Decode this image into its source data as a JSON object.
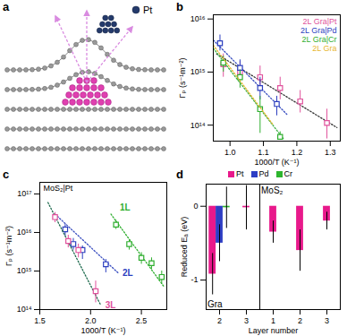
{
  "diagram": {
    "panel_label": "a",
    "legend": "Pt"
  },
  "chart_data": [
    {
      "panel_label": "b",
      "type": "scatter",
      "log": "y",
      "x_label": "1000/T (K⁻¹)",
      "y_label": "Γₚ (s⁻¹m⁻²)",
      "xlim": [
        0.95,
        1.33
      ],
      "xticks": [
        {
          "value": 1,
          "label": "1.0"
        },
        1.1,
        1.2,
        1.3
      ],
      "ylim": [
        50000000000000.0,
        1.2e+16
      ],
      "yticks": [
        {
          "value": 100000000000000.0,
          "label": "10¹⁴"
        },
        {
          "value": 1000000000000000.0,
          "label": "10¹⁵"
        },
        {
          "value": 1e+16,
          "label": "10¹⁶"
        }
      ],
      "legend": "top-right",
      "series": [
        {
          "name": "2L Gra|Pt",
          "color": "#e0529c",
          "marker": "square",
          "x": [
            0.98,
            1.03,
            1.09,
            1.15,
            1.21,
            1.29
          ],
          "values": [
            1400000000000000.0,
            1000000000000000.0,
            800000000000000.0,
            500000000000000.0,
            280000000000000.0,
            110000000000000.0
          ],
          "lower": [
            800000000000000.0,
            600000000000000.0,
            450000000000000.0,
            300000000000000.0,
            170000000000000.0,
            55000000000000.0
          ],
          "upper": [
            2200000000000000.0,
            1600000000000000.0,
            1300000000000000.0,
            800000000000000.0,
            450000000000000.0,
            200000000000000.0
          ],
          "fit": {
            "color": "#333333",
            "line_style": "dotted",
            "x": [
              0.96,
              1.32
            ],
            "values": [
              2200000000000000.0,
              90000000000000.0
            ]
          }
        },
        {
          "name": "2L Gra|Pd",
          "color": "#2c3fbf",
          "marker": "square",
          "x": [
            0.97,
            1.03,
            1.09,
            1.14
          ],
          "values": [
            3500000000000000.0,
            1200000000000000.0,
            500000000000000.0,
            250000000000000.0
          ],
          "lower": [
            2500000000000000.0,
            800000000000000.0,
            300000000000000.0,
            150000000000000.0
          ],
          "upper": [
            5000000000000000.0,
            1700000000000000.0,
            800000000000000.0,
            350000000000000.0
          ],
          "fit": {
            "color": "#3a4fc0",
            "line_style": "dotted",
            "x": [
              0.95,
              1.17
            ],
            "values": [
              4000000000000000.0,
              160000000000000.0
            ]
          }
        },
        {
          "name": "2L Gra|Cr",
          "color": "#2fae2f",
          "marker": "square",
          "x": [
            0.98,
            1.03,
            1.09,
            1.15
          ],
          "values": [
            1500000000000000.0,
            800000000000000.0,
            200000000000000.0,
            60000000000000.0
          ],
          "lower": [
            1000000000000000.0,
            500000000000000.0,
            70000000000000.0,
            52000000000000.0
          ],
          "upper": [
            2000000000000000.0,
            1100000000000000.0,
            350000000000000.0,
            75000000000000.0
          ],
          "fit": {
            "color": "#3cb043",
            "line_style": "dotted",
            "x": [
              0.95,
              1.16
            ],
            "values": [
              2800000000000000.0,
              55000000000000.0
            ]
          }
        },
        {
          "name": "2L Gra",
          "color": "#e8b730",
          "fit": {
            "color": "#e8b730",
            "line_style": "dotted",
            "x": [
              0.95,
              1.13
            ],
            "values": [
              3200000000000000.0,
              100000000000000.0
            ]
          }
        }
      ]
    },
    {
      "panel_label": "c",
      "type": "scatter",
      "log": "y",
      "title": "MoS₂|Pt",
      "x_label": "1000/T (K⁻¹)",
      "y_label": "Γₚ (s⁻¹m⁻²)",
      "xlim": [
        1.5,
        2.75
      ],
      "xticks": [
        1.5,
        {
          "value": 2,
          "label": "2.0"
        },
        2.5
      ],
      "ylim": [
        100000000000000.0,
        2e+17
      ],
      "yticks": [
        {
          "value": 100000000000000.0,
          "label": "10¹⁴"
        },
        {
          "value": 1000000000000000.0,
          "label": "10¹⁵"
        },
        {
          "value": 1e+16,
          "label": "10¹⁶"
        },
        {
          "value": 1e+17,
          "label": "10¹⁷"
        }
      ],
      "series": [
        {
          "name": "1L",
          "color": "#2fae2f",
          "marker": "square",
          "x": [
            2.25,
            2.38,
            2.5,
            2.6,
            2.7
          ],
          "values": [
            1.6e+16,
            5000000000000000.0,
            2200000000000000.0,
            1600000000000000.0,
            700000000000000.0
          ],
          "lower": [
            1.2e+16,
            3500000000000000.0,
            1500000000000000.0,
            1100000000000000.0,
            450000000000000.0
          ],
          "upper": [
            2.1e+16,
            6500000000000000.0,
            3000000000000000.0,
            2200000000000000.0,
            1000000000000000.0
          ],
          "fit": {
            "color": "#2fae2f",
            "line_style": "dotted",
            "x": [
              2.2,
              2.72
            ],
            "values": [
              3e+16,
              400000000000000.0
            ]
          }
        },
        {
          "name": "2L",
          "color": "#2c3fbf",
          "marker": "square",
          "x": [
            1.75,
            1.83,
            1.92,
            2.15
          ],
          "values": [
            1.2e+16,
            5000000000000000.0,
            3500000000000000.0,
            1500000000000000.0
          ],
          "lower": [
            8000000000000000.0,
            3500000000000000.0,
            2000000000000000.0,
            900000000000000.0
          ],
          "upper": [
            1.6e+16,
            7000000000000000.0,
            4500000000000000.0,
            2000000000000000.0
          ],
          "fit": {
            "color": "#3a4fc0",
            "line_style": "dotted",
            "x": [
              1.65,
              2.27
            ],
            "values": [
              3e+16,
              900000000000000.0
            ]
          }
        },
        {
          "name": "3L",
          "color": "#e0529c",
          "marker": "square",
          "x": [
            1.65,
            1.78,
            1.88,
            2.05
          ],
          "values": [
            2.5e+16,
            6000000000000000.0,
            3500000000000000.0,
            300000000000000.0
          ],
          "lower": [
            1.8e+16,
            4000000000000000.0,
            2200000000000000.0,
            150000000000000.0
          ],
          "upper": [
            3.3e+16,
            8500000000000000.0,
            5000000000000000.0,
            550000000000000.0
          ],
          "fit": {
            "color": "#1e6b4e",
            "line_style": "dotted",
            "x": [
              1.58,
              2.1
            ],
            "values": [
              6e+16,
              130000000000000.0
            ]
          }
        }
      ]
    },
    {
      "panel_label": "d",
      "type": "bar",
      "x_label": "Layer number",
      "y_label": "Reduced Eₐ (eV)",
      "categories": [
        "2",
        "3",
        "1",
        "2",
        "3"
      ],
      "category_groups": [
        "Gra",
        "Gra",
        "MoS₂",
        "MoS₂",
        "MoS₂"
      ],
      "ylim": [
        -1.4,
        0.3
      ],
      "yticks": [
        -1,
        0
      ],
      "legend": "top",
      "series": [
        {
          "name": "Pt",
          "color": "#e8198b",
          "values": [
            -0.92,
            -0.02,
            -0.35,
            -0.6,
            -0.2
          ],
          "errors": [
            0.28,
            0.3,
            0.15,
            0.28,
            0.12
          ]
        },
        {
          "name": "Pd",
          "color": "#2e3ec4",
          "values": [
            -0.5,
            null,
            null,
            null,
            null
          ],
          "errors": [
            0.25,
            null,
            null,
            null,
            null
          ]
        },
        {
          "name": "Cr",
          "color": "#2db52d",
          "values": [
            -0.02,
            null,
            null,
            null,
            null
          ],
          "errors": [
            0.28,
            null,
            null,
            null,
            null
          ]
        }
      ]
    }
  ]
}
